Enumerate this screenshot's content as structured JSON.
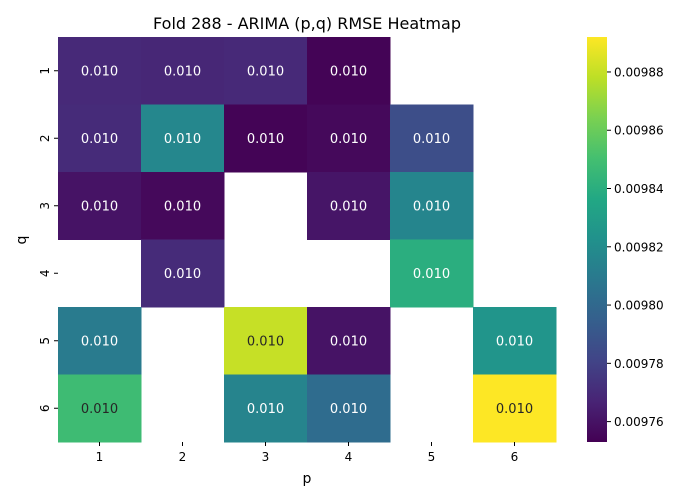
{
  "chart_data": {
    "type": "heatmap",
    "title": "Fold 288 - ARIMA (p,q) RMSE Heatmap",
    "xlabel": "p",
    "ylabel": "q",
    "x_categories": [
      "1",
      "2",
      "3",
      "4",
      "5",
      "6"
    ],
    "y_categories": [
      "1",
      "2",
      "3",
      "4",
      "5",
      "6"
    ],
    "colormap": "viridis",
    "vmin": 0.009753,
    "vmax": 0.009892,
    "colorbar_ticks": [
      "0.00976",
      "0.00978",
      "0.00980",
      "0.00982",
      "0.00984",
      "0.00986",
      "0.00988"
    ],
    "colorbar_tick_values": [
      0.00976,
      0.00978,
      0.0098,
      0.00982,
      0.00984,
      0.00986,
      0.00988
    ],
    "cell_label": "0.010",
    "values": [
      [
        0.009769,
        0.009768,
        0.009769,
        0.009754,
        null,
        null
      ],
      [
        0.00977,
        0.009817,
        0.009754,
        0.009756,
        0.009786,
        null
      ],
      [
        0.00976,
        0.009756,
        null,
        0.009761,
        0.009816,
        null
      ],
      [
        null,
        0.00977,
        null,
        null,
        0.00984,
        null
      ],
      [
        0.00981,
        null,
        0.00988,
        0.00976,
        null,
        0.009825
      ],
      [
        0.009848,
        null,
        0.009815,
        0.009802,
        null,
        0.009892
      ]
    ]
  }
}
